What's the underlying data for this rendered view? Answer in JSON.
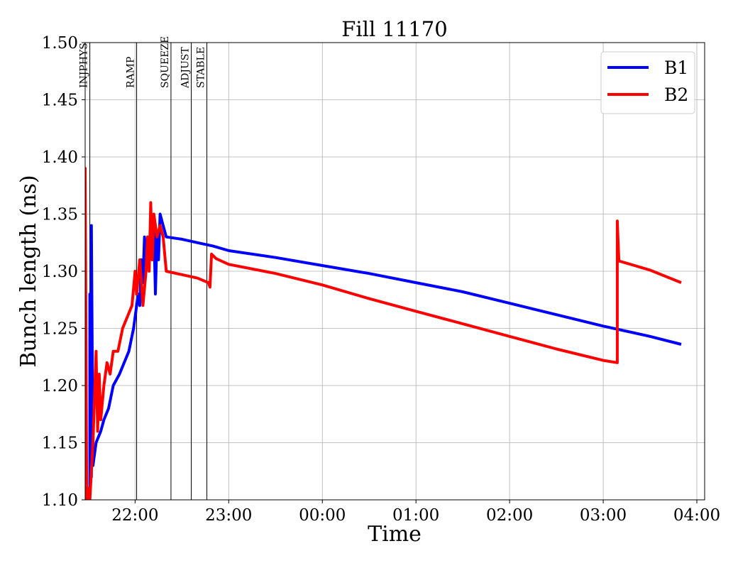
{
  "chart_data": {
    "type": "line",
    "title": "Fill 11170",
    "xlabel": "Time",
    "ylabel": "Bunch length (ns)",
    "xlim": [
      "21:28",
      "04:05"
    ],
    "ylim": [
      1.1,
      1.5
    ],
    "grid": true,
    "legend_position": "top-right",
    "x_ticks": [
      "22:00",
      "23:00",
      "00:00",
      "01:00",
      "02:00",
      "03:00",
      "04:00"
    ],
    "y_ticks": [
      "1.10",
      "1.15",
      "1.20",
      "1.25",
      "1.30",
      "1.35",
      "1.40",
      "1.45",
      "1.50"
    ],
    "phases": [
      {
        "label": "INJPHYS",
        "time": "21:31"
      },
      {
        "label": "RAMP",
        "time": "22:01"
      },
      {
        "label": "SQUEEZE",
        "time": "22:23"
      },
      {
        "label": "ADJUST",
        "time": "22:36"
      },
      {
        "label": "STABLE",
        "time": "22:46"
      }
    ],
    "series": [
      {
        "name": "B1",
        "color": "#0000ff",
        "points": [
          [
            "21:28",
            1.1
          ],
          [
            "21:30",
            1.11
          ],
          [
            "21:31",
            1.1
          ],
          [
            "21:31",
            1.28
          ],
          [
            "21:32",
            1.12
          ],
          [
            "21:32",
            1.34
          ],
          [
            "21:33",
            1.13
          ],
          [
            "21:35",
            1.15
          ],
          [
            "21:38",
            1.16
          ],
          [
            "21:40",
            1.17
          ],
          [
            "21:43",
            1.18
          ],
          [
            "21:46",
            1.2
          ],
          [
            "21:50",
            1.21
          ],
          [
            "21:53",
            1.22
          ],
          [
            "21:56",
            1.23
          ],
          [
            "21:59",
            1.25
          ],
          [
            "22:02",
            1.28
          ],
          [
            "22:03",
            1.27
          ],
          [
            "22:04",
            1.31
          ],
          [
            "22:05",
            1.29
          ],
          [
            "22:06",
            1.33
          ],
          [
            "22:07",
            1.3
          ],
          [
            "22:08",
            1.33
          ],
          [
            "22:09",
            1.32
          ],
          [
            "22:10",
            1.33
          ],
          [
            "22:11",
            1.31
          ],
          [
            "22:12",
            1.34
          ],
          [
            "22:13",
            1.28
          ],
          [
            "22:14",
            1.33
          ],
          [
            "22:15",
            1.31
          ],
          [
            "22:16",
            1.35
          ],
          [
            "22:18",
            1.34
          ],
          [
            "22:20",
            1.33
          ],
          [
            "22:30",
            1.328
          ],
          [
            "22:40",
            1.325
          ],
          [
            "22:50",
            1.322
          ],
          [
            "23:00",
            1.318
          ],
          [
            "23:30",
            1.312
          ],
          [
            "00:00",
            1.305
          ],
          [
            "00:30",
            1.298
          ],
          [
            "01:00",
            1.29
          ],
          [
            "01:30",
            1.282
          ],
          [
            "02:00",
            1.272
          ],
          [
            "02:30",
            1.262
          ],
          [
            "03:00",
            1.252
          ],
          [
            "03:30",
            1.243
          ],
          [
            "03:50",
            1.236
          ]
        ]
      },
      {
        "name": "B2",
        "color": "#ff0000",
        "points": [
          [
            "21:28",
            1.1
          ],
          [
            "21:28",
            1.39
          ],
          [
            "21:29",
            1.1
          ],
          [
            "21:30",
            1.11
          ],
          [
            "21:31",
            1.1
          ],
          [
            "21:33",
            1.15
          ],
          [
            "21:35",
            1.23
          ],
          [
            "21:36",
            1.16
          ],
          [
            "21:37",
            1.21
          ],
          [
            "21:38",
            1.17
          ],
          [
            "21:40",
            1.2
          ],
          [
            "21:42",
            1.22
          ],
          [
            "21:44",
            1.21
          ],
          [
            "21:46",
            1.23
          ],
          [
            "21:49",
            1.23
          ],
          [
            "21:52",
            1.25
          ],
          [
            "21:55",
            1.26
          ],
          [
            "21:58",
            1.27
          ],
          [
            "22:00",
            1.3
          ],
          [
            "22:01",
            1.28
          ],
          [
            "22:03",
            1.31
          ],
          [
            "22:05",
            1.27
          ],
          [
            "22:07",
            1.3
          ],
          [
            "22:08",
            1.33
          ],
          [
            "22:09",
            1.3
          ],
          [
            "22:10",
            1.36
          ],
          [
            "22:11",
            1.31
          ],
          [
            "22:12",
            1.35
          ],
          [
            "22:14",
            1.33
          ],
          [
            "22:16",
            1.34
          ],
          [
            "22:18",
            1.33
          ],
          [
            "22:20",
            1.3
          ],
          [
            "22:30",
            1.297
          ],
          [
            "22:40",
            1.294
          ],
          [
            "22:47",
            1.29
          ],
          [
            "22:48",
            1.286
          ],
          [
            "22:49",
            1.315
          ],
          [
            "22:52",
            1.311
          ],
          [
            "23:00",
            1.306
          ],
          [
            "23:30",
            1.298
          ],
          [
            "00:00",
            1.288
          ],
          [
            "00:30",
            1.276
          ],
          [
            "01:00",
            1.265
          ],
          [
            "01:30",
            1.254
          ],
          [
            "02:00",
            1.243
          ],
          [
            "02:30",
            1.232
          ],
          [
            "03:00",
            1.222
          ],
          [
            "03:09",
            1.22
          ],
          [
            "03:09",
            1.344
          ],
          [
            "03:10",
            1.309
          ],
          [
            "03:30",
            1.301
          ],
          [
            "03:50",
            1.29
          ]
        ]
      }
    ]
  }
}
